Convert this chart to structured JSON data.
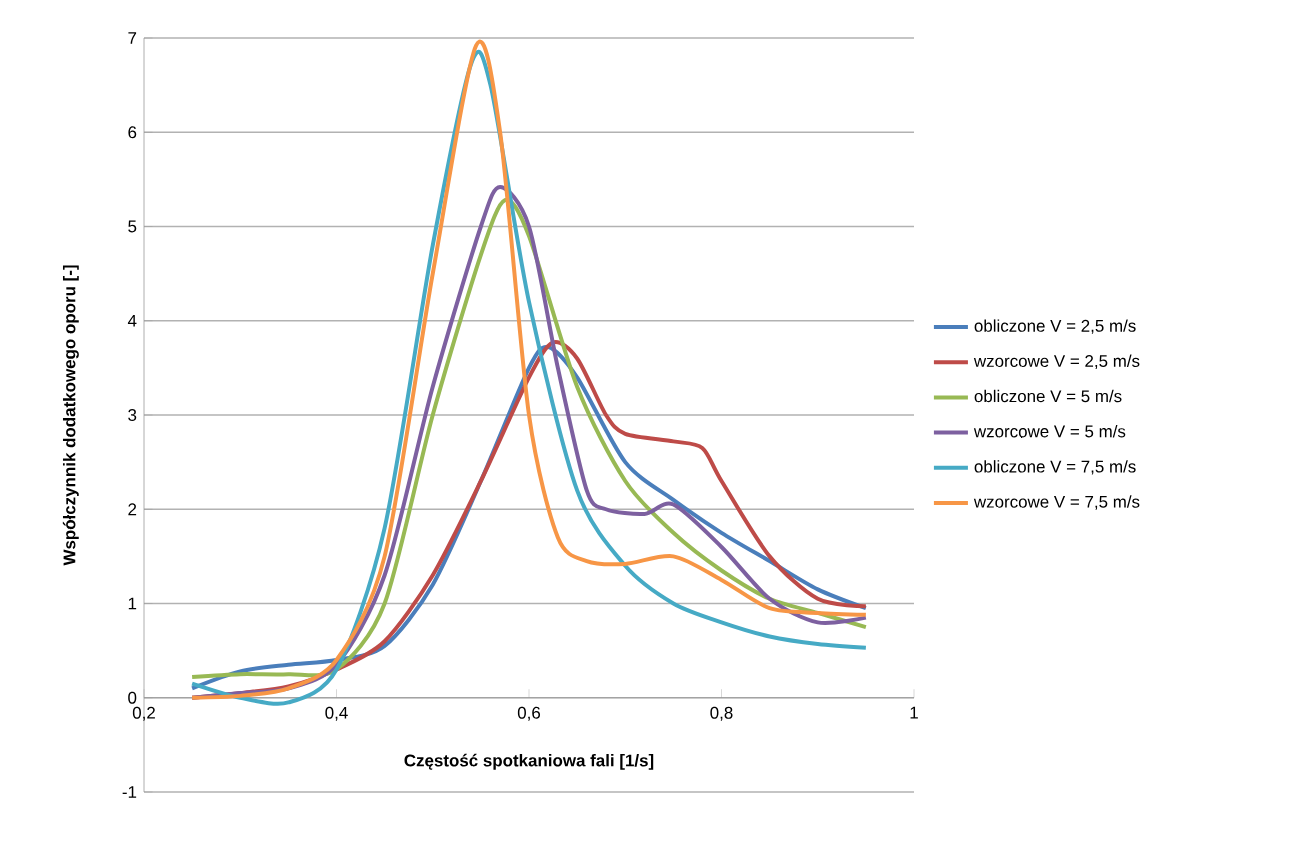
{
  "chart_data": {
    "type": "line",
    "xlabel": "Częstość spotkaniowa fali [1/s]",
    "ylabel": "Współczynnik dodatkowego oporu [-]",
    "xlim": [
      0.2,
      1
    ],
    "xticks": [
      {
        "value": 0.2,
        "label": "0,2"
      },
      {
        "value": 0.4,
        "label": "0,4"
      },
      {
        "value": 0.6,
        "label": "0,6"
      },
      {
        "value": 0.8,
        "label": "0,8"
      },
      1
    ],
    "ylim": [
      -1,
      7
    ],
    "yticks": [
      -1,
      0,
      1,
      2,
      3,
      4,
      5,
      6,
      7
    ],
    "grid": "y",
    "legend": "right",
    "marker": "none",
    "line_style": "solid",
    "series": [
      {
        "name": "obliczone V = 2,5 m/s",
        "color": "#4a7ebb",
        "x": [
          0.25,
          0.3,
          0.35,
          0.4,
          0.45,
          0.5,
          0.55,
          0.6,
          0.62,
          0.65,
          0.7,
          0.75,
          0.8,
          0.85,
          0.9,
          0.95
        ],
        "values": [
          0.1,
          0.28,
          0.35,
          0.4,
          0.55,
          1.2,
          2.3,
          3.5,
          3.72,
          3.4,
          2.5,
          2.1,
          1.75,
          1.45,
          1.15,
          0.95
        ]
      },
      {
        "name": "wzorcowe V = 2,5 m/s",
        "color": "#be4b48",
        "x": [
          0.25,
          0.3,
          0.35,
          0.4,
          0.45,
          0.5,
          0.55,
          0.6,
          0.625,
          0.65,
          0.68,
          0.7,
          0.75,
          0.78,
          0.8,
          0.85,
          0.9,
          0.95
        ],
        "values": [
          0,
          0.05,
          0.12,
          0.3,
          0.6,
          1.3,
          2.3,
          3.4,
          3.77,
          3.6,
          3.0,
          2.8,
          2.72,
          2.65,
          2.3,
          1.5,
          1.05,
          0.97
        ]
      },
      {
        "name": "obliczone V = 5 m/s",
        "color": "#98b954",
        "x": [
          0.25,
          0.3,
          0.35,
          0.4,
          0.45,
          0.5,
          0.55,
          0.575,
          0.6,
          0.65,
          0.7,
          0.75,
          0.8,
          0.85,
          0.9,
          0.95
        ],
        "values": [
          0.22,
          0.25,
          0.25,
          0.3,
          1.0,
          3.0,
          4.7,
          5.28,
          4.9,
          3.3,
          2.3,
          1.75,
          1.35,
          1.05,
          0.9,
          0.75
        ]
      },
      {
        "name": "wzorcowe V = 5 m/s",
        "color": "#7d60a0",
        "x": [
          0.25,
          0.3,
          0.35,
          0.4,
          0.45,
          0.5,
          0.55,
          0.57,
          0.6,
          0.63,
          0.66,
          0.68,
          0.72,
          0.75,
          0.8,
          0.85,
          0.9,
          0.95
        ],
        "values": [
          0,
          0.05,
          0.1,
          0.35,
          1.3,
          3.3,
          5.0,
          5.42,
          5.0,
          3.5,
          2.2,
          2.0,
          1.95,
          2.05,
          1.6,
          1.05,
          0.8,
          0.85
        ]
      },
      {
        "name": "obliczone V = 7,5 m/s",
        "color": "#46aac5",
        "x": [
          0.25,
          0.3,
          0.35,
          0.4,
          0.45,
          0.5,
          0.54,
          0.56,
          0.6,
          0.65,
          0.7,
          0.75,
          0.8,
          0.85,
          0.9,
          0.95
        ],
        "values": [
          0.15,
          0.0,
          -0.05,
          0.3,
          1.8,
          4.8,
          6.73,
          6.5,
          4.2,
          2.2,
          1.4,
          1.0,
          0.8,
          0.65,
          0.57,
          0.53
        ]
      },
      {
        "name": "wzorcowe V = 7,5 m/s",
        "color": "#f79646",
        "x": [
          0.25,
          0.3,
          0.35,
          0.4,
          0.45,
          0.5,
          0.545,
          0.57,
          0.6,
          0.63,
          0.66,
          0.7,
          0.75,
          0.8,
          0.85,
          0.9,
          0.95
        ],
        "values": [
          0,
          0.02,
          0.1,
          0.4,
          1.5,
          4.5,
          6.92,
          6.0,
          3.0,
          1.7,
          1.45,
          1.42,
          1.5,
          1.25,
          0.95,
          0.9,
          0.88
        ]
      }
    ]
  }
}
